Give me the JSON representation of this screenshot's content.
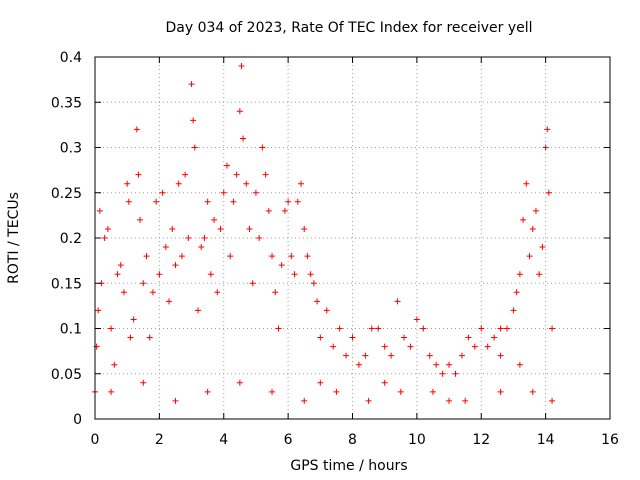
{
  "chart_data": {
    "type": "scatter",
    "title": "Day 034 of 2023, Rate Of TEC Index for receiver yell",
    "xlabel": "GPS time / hours",
    "ylabel": "ROTI / TECUs",
    "xlim": [
      0,
      16
    ],
    "ylim": [
      0,
      0.4
    ],
    "x_ticks": [
      0,
      2,
      4,
      6,
      8,
      10,
      12,
      14,
      16
    ],
    "y_ticks": [
      0,
      0.05,
      0.1,
      0.15,
      0.2,
      0.25,
      0.3,
      0.35,
      0.4
    ],
    "x_tick_labels": [
      "0",
      "2",
      "4",
      "6",
      "8",
      "10",
      "12",
      "14",
      "16"
    ],
    "y_tick_labels": [
      "0",
      "0.05",
      "0.1",
      "0.15",
      "0.2",
      "0.25",
      "0.3",
      "0.35",
      "0.4"
    ],
    "grid": true,
    "marker": "+",
    "color": "#ff0000",
    "series": [
      {
        "name": "ROTI",
        "points": [
          [
            0.0,
            0.03
          ],
          [
            0.05,
            0.08
          ],
          [
            0.1,
            0.12
          ],
          [
            0.15,
            0.23
          ],
          [
            0.2,
            0.15
          ],
          [
            0.3,
            0.2
          ],
          [
            0.4,
            0.21
          ],
          [
            0.5,
            0.1
          ],
          [
            0.6,
            0.06
          ],
          [
            0.7,
            0.16
          ],
          [
            0.8,
            0.17
          ],
          [
            0.9,
            0.14
          ],
          [
            1.0,
            0.26
          ],
          [
            1.05,
            0.24
          ],
          [
            1.1,
            0.09
          ],
          [
            1.2,
            0.11
          ],
          [
            1.3,
            0.32
          ],
          [
            1.35,
            0.27
          ],
          [
            1.4,
            0.22
          ],
          [
            1.5,
            0.15
          ],
          [
            1.6,
            0.18
          ],
          [
            1.7,
            0.09
          ],
          [
            1.8,
            0.14
          ],
          [
            1.9,
            0.24
          ],
          [
            2.0,
            0.16
          ],
          [
            2.1,
            0.25
          ],
          [
            2.2,
            0.19
          ],
          [
            2.3,
            0.13
          ],
          [
            2.4,
            0.21
          ],
          [
            2.5,
            0.17
          ],
          [
            2.6,
            0.26
          ],
          [
            2.7,
            0.18
          ],
          [
            2.8,
            0.27
          ],
          [
            2.9,
            0.2
          ],
          [
            3.0,
            0.37
          ],
          [
            3.05,
            0.33
          ],
          [
            3.1,
            0.3
          ],
          [
            3.2,
            0.12
          ],
          [
            3.3,
            0.19
          ],
          [
            3.4,
            0.2
          ],
          [
            3.5,
            0.24
          ],
          [
            3.6,
            0.16
          ],
          [
            3.7,
            0.22
          ],
          [
            3.8,
            0.14
          ],
          [
            3.9,
            0.21
          ],
          [
            4.0,
            0.25
          ],
          [
            4.1,
            0.28
          ],
          [
            4.2,
            0.18
          ],
          [
            4.3,
            0.24
          ],
          [
            4.4,
            0.27
          ],
          [
            4.5,
            0.34
          ],
          [
            4.55,
            0.39
          ],
          [
            4.6,
            0.31
          ],
          [
            4.7,
            0.26
          ],
          [
            4.8,
            0.21
          ],
          [
            4.9,
            0.15
          ],
          [
            5.0,
            0.25
          ],
          [
            5.1,
            0.2
          ],
          [
            5.2,
            0.3
          ],
          [
            5.3,
            0.27
          ],
          [
            5.4,
            0.23
          ],
          [
            5.5,
            0.18
          ],
          [
            5.6,
            0.14
          ],
          [
            5.7,
            0.1
          ],
          [
            5.8,
            0.17
          ],
          [
            5.9,
            0.23
          ],
          [
            6.0,
            0.24
          ],
          [
            6.1,
            0.18
          ],
          [
            6.2,
            0.16
          ],
          [
            6.3,
            0.24
          ],
          [
            6.4,
            0.26
          ],
          [
            6.5,
            0.21
          ],
          [
            6.6,
            0.18
          ],
          [
            6.7,
            0.16
          ],
          [
            6.8,
            0.15
          ],
          [
            6.9,
            0.13
          ],
          [
            7.0,
            0.09
          ],
          [
            7.2,
            0.12
          ],
          [
            7.4,
            0.08
          ],
          [
            7.6,
            0.1
          ],
          [
            7.8,
            0.07
          ],
          [
            8.0,
            0.09
          ],
          [
            8.2,
            0.06
          ],
          [
            8.4,
            0.07
          ],
          [
            8.6,
            0.1
          ],
          [
            8.8,
            0.1
          ],
          [
            9.0,
            0.08
          ],
          [
            9.2,
            0.07
          ],
          [
            9.4,
            0.13
          ],
          [
            9.6,
            0.09
          ],
          [
            9.8,
            0.08
          ],
          [
            10.0,
            0.11
          ],
          [
            10.2,
            0.1
          ],
          [
            10.4,
            0.07
          ],
          [
            10.6,
            0.06
          ],
          [
            10.8,
            0.05
          ],
          [
            11.0,
            0.06
          ],
          [
            11.2,
            0.05
          ],
          [
            11.4,
            0.07
          ],
          [
            11.6,
            0.09
          ],
          [
            11.8,
            0.08
          ],
          [
            12.0,
            0.1
          ],
          [
            12.2,
            0.08
          ],
          [
            12.4,
            0.09
          ],
          [
            12.6,
            0.07
          ],
          [
            12.8,
            0.1
          ],
          [
            13.0,
            0.12
          ],
          [
            13.1,
            0.14
          ],
          [
            13.2,
            0.16
          ],
          [
            13.3,
            0.22
          ],
          [
            13.4,
            0.26
          ],
          [
            13.5,
            0.18
          ],
          [
            13.6,
            0.21
          ],
          [
            13.7,
            0.23
          ],
          [
            13.8,
            0.16
          ],
          [
            13.9,
            0.19
          ],
          [
            14.0,
            0.3
          ],
          [
            14.05,
            0.32
          ],
          [
            14.1,
            0.25
          ],
          [
            14.2,
            0.1
          ],
          [
            14.2,
            0.02
          ],
          [
            13.6,
            0.03
          ],
          [
            12.6,
            0.03
          ],
          [
            11.5,
            0.02
          ],
          [
            10.5,
            0.03
          ],
          [
            9.5,
            0.03
          ],
          [
            8.5,
            0.02
          ],
          [
            7.5,
            0.03
          ],
          [
            6.5,
            0.02
          ],
          [
            5.5,
            0.03
          ],
          [
            4.5,
            0.04
          ],
          [
            3.5,
            0.03
          ],
          [
            2.5,
            0.02
          ],
          [
            1.5,
            0.04
          ],
          [
            0.5,
            0.03
          ],
          [
            12.6,
            0.1
          ],
          [
            13.2,
            0.06
          ],
          [
            11.0,
            0.02
          ],
          [
            9.0,
            0.04
          ],
          [
            7.0,
            0.04
          ]
        ]
      }
    ]
  }
}
